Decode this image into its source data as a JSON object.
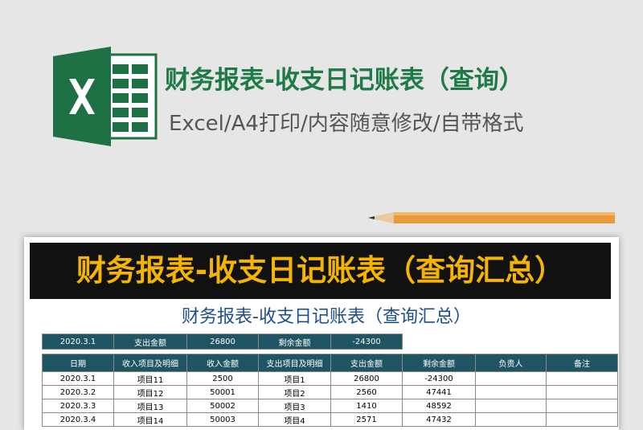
{
  "header": {
    "title": "财务报表-收支日记账表（查询）",
    "subtitle": "Excel/A4打印/内容随意修改/自带格式"
  },
  "banner": "财务报表-收支日记账表（查询汇总）",
  "sheet": {
    "title": "财务报表-收支日记账表（查询汇总）",
    "summary": [
      "2020.3.1",
      "支出金额",
      26800,
      "剩余金额",
      -24300
    ],
    "columns": [
      "日期",
      "收入项目及明细",
      "收入金额",
      "支出项目及明细",
      "支出金额",
      "剩余金额",
      "负责人",
      "备注"
    ],
    "rows": [
      [
        "2020.3.1",
        "项目11",
        2500,
        "项目1",
        26800,
        -24300
      ],
      [
        "2020.3.2",
        "项目12",
        50001,
        "项目2",
        2560,
        47441
      ],
      [
        "2020.3.3",
        "项目13",
        50002,
        "项目3",
        1410,
        48592
      ],
      [
        "2020.3.4",
        "项目14",
        50003,
        "项目4",
        2571,
        47432
      ]
    ]
  }
}
